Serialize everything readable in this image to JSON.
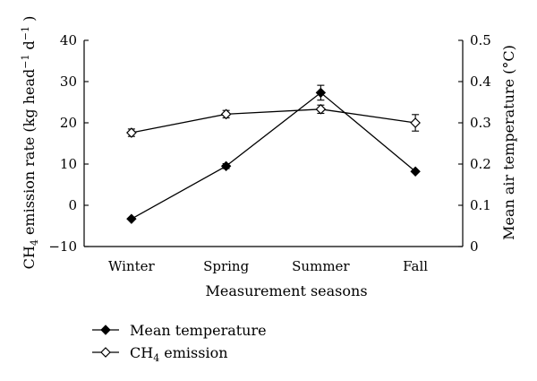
{
  "chart_data": {
    "type": "line",
    "x_label": "Measurement seasons",
    "y_left_label": "CH4 emission rate (kg head−1 d−1 )",
    "y_right_label": "Mean air temperature (°C)",
    "categories": [
      "Winter",
      "Spring",
      "Summer",
      "Fall"
    ],
    "y_left_range": [
      -10,
      40
    ],
    "y_left_ticks": [
      "−10",
      "0",
      "10",
      "20",
      "30",
      "40"
    ],
    "y_right_range": [
      0,
      0.5
    ],
    "y_right_ticks": [
      "0",
      "0.1",
      "0.2",
      "0.3",
      "0.4",
      "0.5"
    ],
    "series": [
      {
        "name": "Mean temperature",
        "marker": "filled-diamond",
        "color": "#000000",
        "axis": "left",
        "values": [
          -3.3,
          9.5,
          27.3,
          8.2
        ],
        "error": [
          0,
          0.6,
          1.8,
          0
        ]
      },
      {
        "name": "CH4 emission",
        "marker": "open-diamond",
        "color": "#000000",
        "axis": "left",
        "values": [
          17.6,
          22.1,
          23.3,
          20.0
        ],
        "error": [
          0.9,
          0.9,
          1.0,
          2.0
        ]
      }
    ],
    "legend": {
      "placement": "bottom-left",
      "items": [
        "Mean temperature",
        "CH4 emission"
      ]
    },
    "grid": false
  }
}
